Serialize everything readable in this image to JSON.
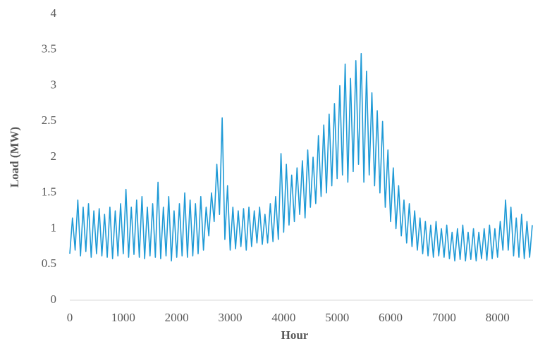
{
  "chart_data": {
    "type": "line",
    "x_label": "Hour",
    "y_label": "Load (MW)",
    "xlim": [
      0,
      8650
    ],
    "xticks": [
      0,
      1000,
      2000,
      3000,
      4000,
      5000,
      6000,
      7000,
      8000
    ],
    "ylim": [
      0,
      4
    ],
    "yticks": [
      0,
      0.5,
      1,
      1.5,
      2,
      2.5,
      3,
      3.5,
      4
    ],
    "grid": false,
    "x": [
      0,
      50,
      100,
      150,
      200,
      250,
      300,
      350,
      400,
      450,
      500,
      550,
      600,
      650,
      700,
      750,
      800,
      850,
      900,
      950,
      1000,
      1050,
      1100,
      1150,
      1200,
      1250,
      1300,
      1350,
      1400,
      1450,
      1500,
      1550,
      1600,
      1650,
      1700,
      1750,
      1800,
      1850,
      1900,
      1950,
      2000,
      2050,
      2100,
      2150,
      2200,
      2250,
      2300,
      2350,
      2400,
      2450,
      2500,
      2550,
      2600,
      2650,
      2700,
      2750,
      2800,
      2850,
      2900,
      2950,
      3000,
      3050,
      3100,
      3150,
      3200,
      3250,
      3300,
      3350,
      3400,
      3450,
      3500,
      3550,
      3600,
      3650,
      3700,
      3750,
      3800,
      3850,
      3900,
      3950,
      4000,
      4050,
      4100,
      4150,
      4200,
      4250,
      4300,
      4350,
      4400,
      4450,
      4500,
      4550,
      4600,
      4650,
      4700,
      4750,
      4800,
      4850,
      4900,
      4950,
      5000,
      5050,
      5100,
      5150,
      5200,
      5250,
      5300,
      5350,
      5400,
      5450,
      5500,
      5550,
      5600,
      5650,
      5700,
      5750,
      5800,
      5850,
      5900,
      5950,
      6000,
      6050,
      6100,
      6150,
      6200,
      6250,
      6300,
      6350,
      6400,
      6450,
      6500,
      6550,
      6600,
      6650,
      6700,
      6750,
      6800,
      6850,
      6900,
      6950,
      7000,
      7050,
      7100,
      7150,
      7200,
      7250,
      7300,
      7350,
      7400,
      7450,
      7500,
      7550,
      7600,
      7650,
      7700,
      7750,
      7800,
      7850,
      7900,
      7950,
      8000,
      8050,
      8100,
      8150,
      8200,
      8250,
      8300,
      8350,
      8400,
      8450,
      8500,
      8550,
      8600,
      8650
    ],
    "series": [
      {
        "color": "#1f9ad6",
        "values": [
          0.65,
          1.15,
          0.7,
          1.4,
          0.62,
          1.3,
          0.68,
          1.35,
          0.6,
          1.25,
          0.65,
          1.28,
          0.62,
          1.2,
          0.6,
          1.3,
          0.58,
          1.25,
          0.62,
          1.35,
          0.65,
          1.55,
          0.6,
          1.3,
          0.64,
          1.4,
          0.6,
          1.45,
          0.58,
          1.3,
          0.62,
          1.35,
          0.6,
          1.65,
          0.58,
          1.3,
          0.62,
          1.45,
          0.55,
          1.25,
          0.6,
          1.35,
          0.62,
          1.5,
          0.6,
          1.4,
          0.62,
          1.35,
          0.65,
          1.45,
          0.7,
          1.3,
          0.9,
          1.5,
          1.1,
          1.9,
          1.2,
          2.55,
          0.85,
          1.6,
          0.7,
          1.3,
          0.72,
          1.25,
          0.75,
          1.28,
          0.7,
          1.3,
          0.75,
          1.25,
          0.8,
          1.3,
          0.78,
          1.2,
          0.8,
          1.35,
          0.82,
          1.45,
          0.85,
          2.05,
          0.95,
          1.9,
          1.05,
          1.75,
          1.1,
          1.85,
          1.2,
          1.95,
          1.15,
          2.1,
          1.3,
          2.0,
          1.35,
          2.3,
          1.45,
          2.45,
          1.5,
          2.6,
          1.6,
          2.75,
          1.7,
          3.0,
          1.75,
          3.3,
          1.65,
          3.1,
          1.8,
          3.35,
          1.9,
          3.45,
          1.65,
          3.2,
          1.75,
          2.9,
          1.6,
          2.65,
          1.5,
          2.5,
          1.3,
          2.1,
          1.1,
          1.85,
          1.0,
          1.6,
          0.9,
          1.4,
          0.8,
          1.35,
          0.75,
          1.25,
          0.7,
          1.15,
          0.65,
          1.1,
          0.62,
          1.05,
          0.6,
          1.1,
          0.62,
          1.0,
          0.6,
          1.05,
          0.58,
          0.95,
          0.55,
          1.0,
          0.57,
          1.05,
          0.55,
          0.95,
          0.57,
          1.0,
          0.55,
          0.95,
          0.58,
          1.0,
          0.56,
          1.05,
          0.58,
          1.0,
          0.6,
          1.1,
          0.7,
          1.4,
          0.7,
          1.3,
          0.62,
          1.15,
          0.6,
          1.2,
          0.58,
          1.1,
          0.6,
          1.05
        ]
      }
    ]
  }
}
